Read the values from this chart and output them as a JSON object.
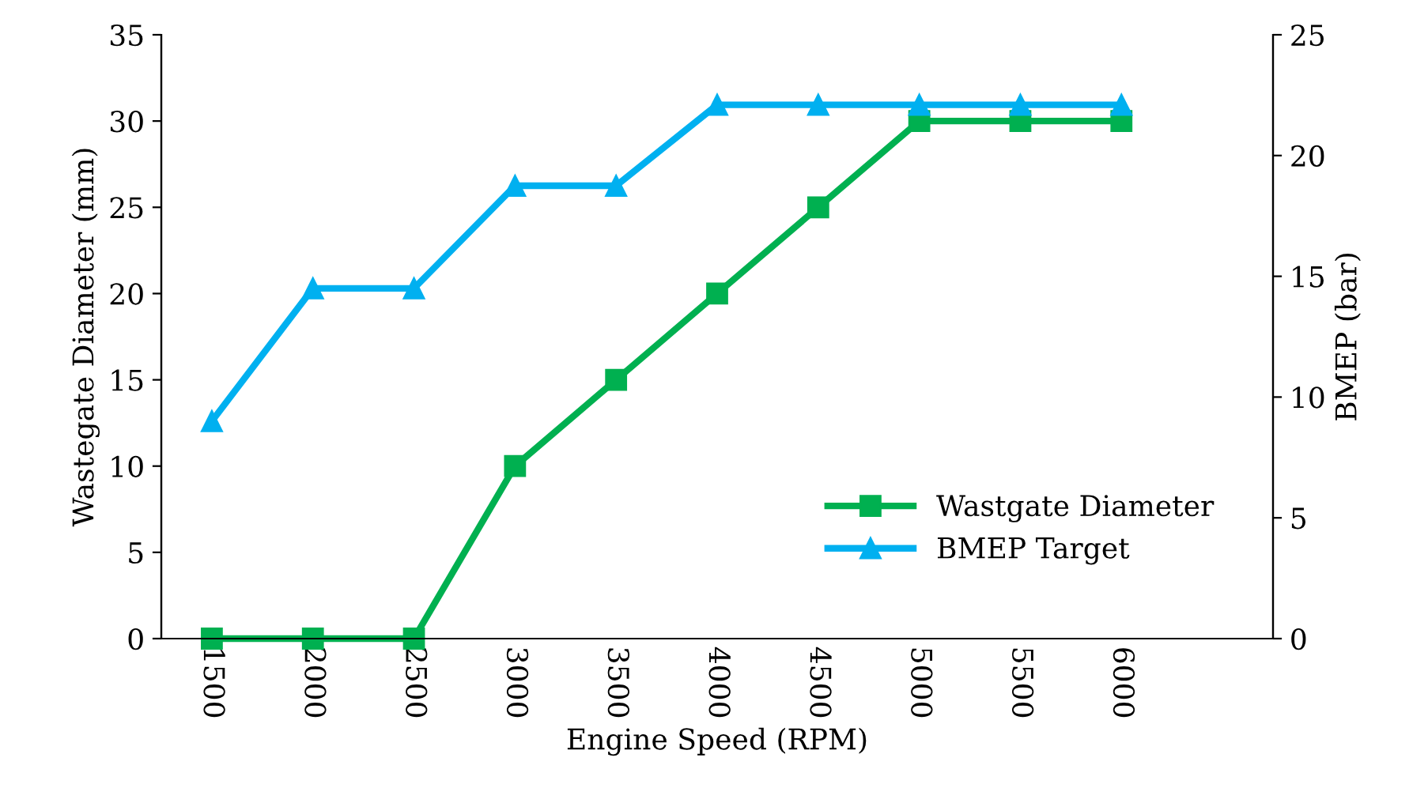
{
  "chart_data": {
    "type": "line",
    "xlabel": "Engine Speed (RPM)",
    "ylabel": "Wastegate Diameter (mm)",
    "y2label": "BMEP (bar)",
    "categories": [
      "1500",
      "2000",
      "2500",
      "3000",
      "3500",
      "4000",
      "4500",
      "5000",
      "5500",
      "6000",
      null
    ],
    "series": [
      {
        "name": "Wastgate Diameter",
        "color": "#00b050",
        "marker": "square",
        "values": [
          0,
          0,
          0,
          10,
          15,
          20,
          25,
          30,
          30,
          30,
          null
        ]
      },
      {
        "name": "BMEP Target",
        "color": "#00b0f0",
        "marker": "triangle",
        "axis": "y2",
        "values": [
          9,
          14.5,
          14.5,
          18.75,
          18.75,
          22.1,
          22.1,
          22.1,
          22.1,
          22.1,
          null
        ]
      }
    ],
    "ylim": [
      0,
      35
    ],
    "yticks": [
      0,
      5,
      10,
      15,
      20,
      25,
      30,
      35
    ],
    "y2lim": [
      0,
      25
    ],
    "y2ticks": [
      0,
      5,
      10,
      15,
      20,
      25
    ],
    "grid": false,
    "legend": "bottom right",
    "line_style": "solid"
  }
}
